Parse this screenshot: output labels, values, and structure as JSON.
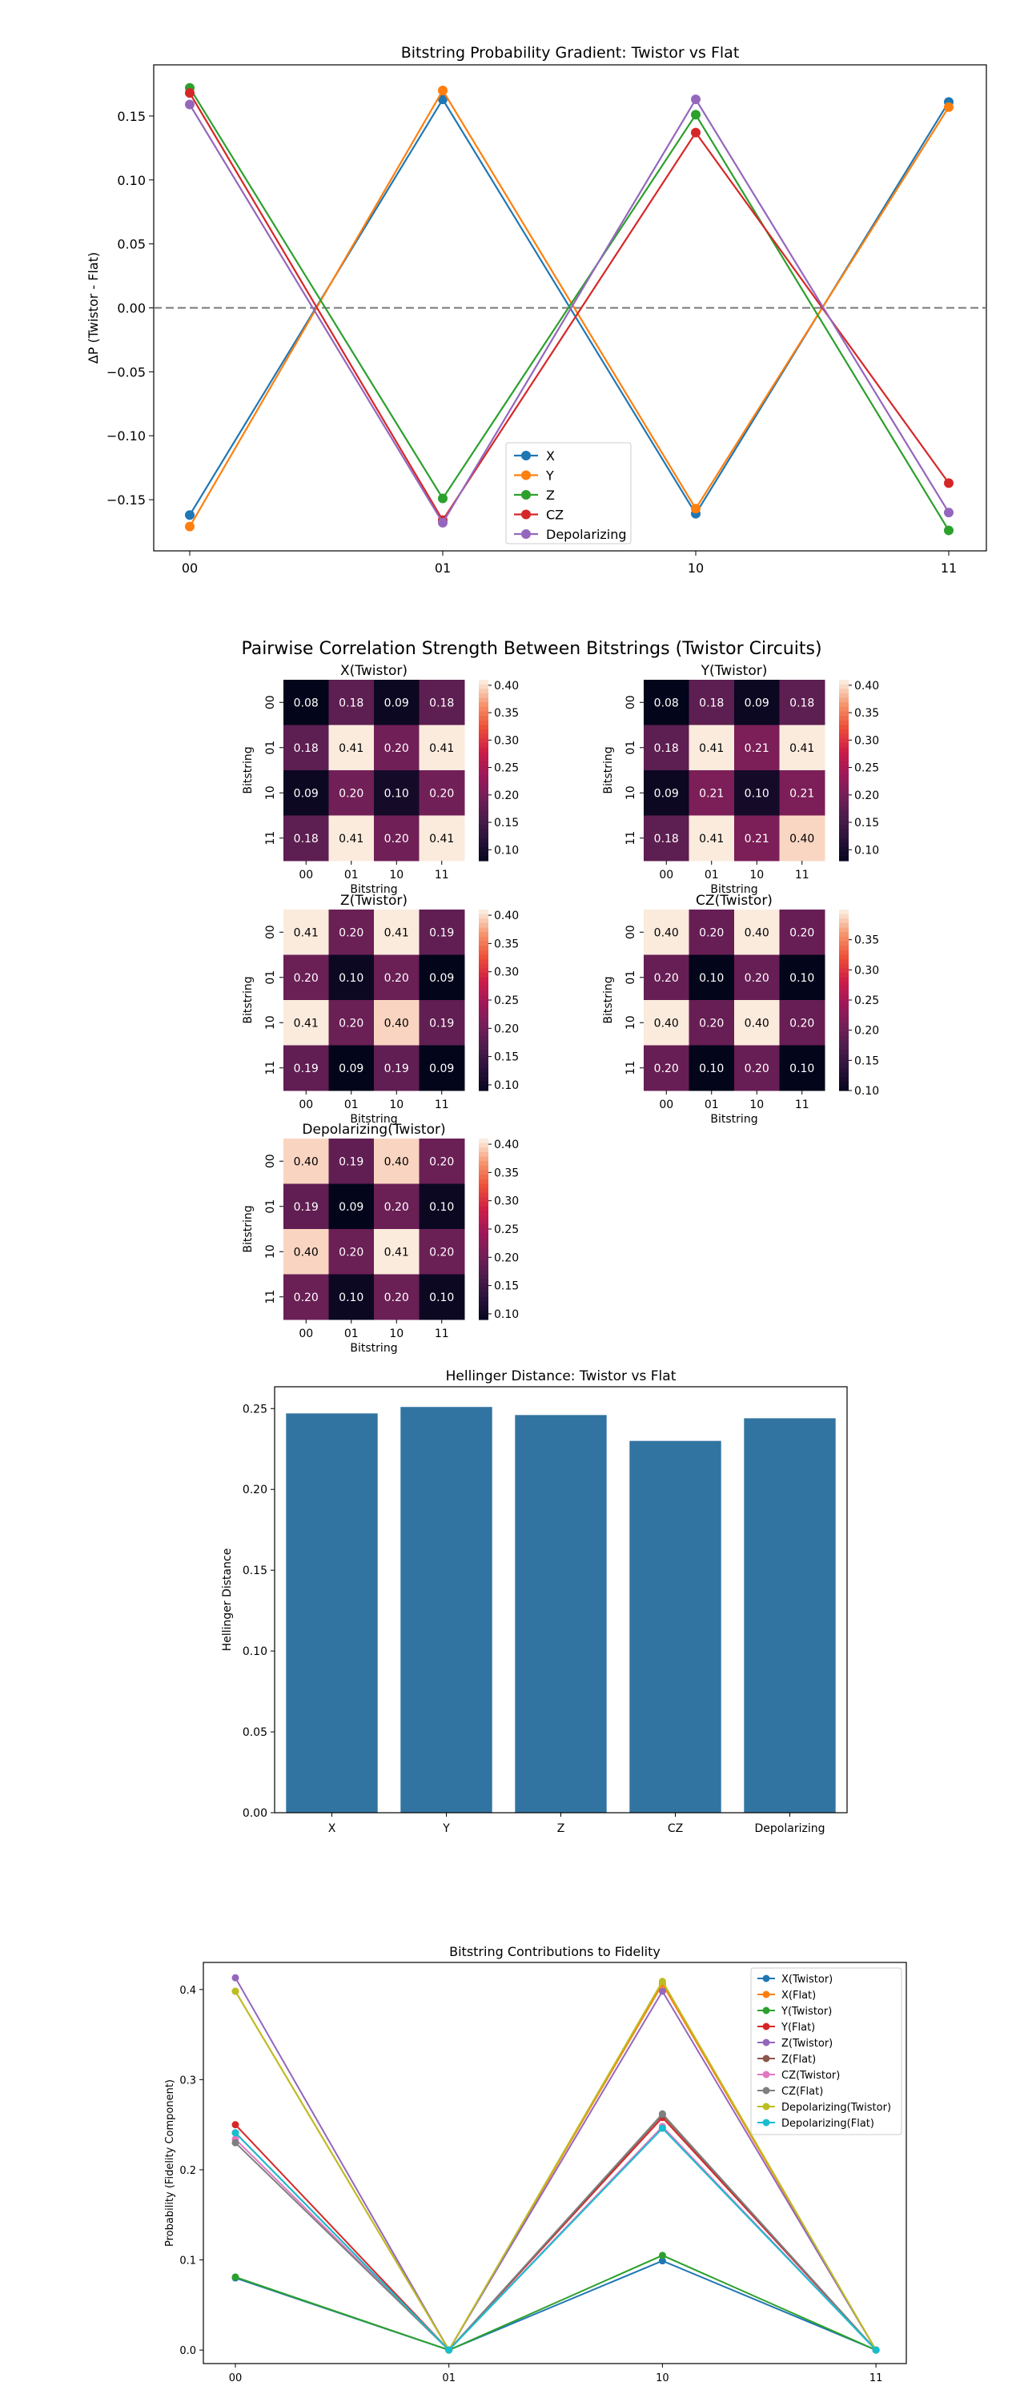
{
  "chart_data": [
    {
      "type": "line",
      "title": "Bitstring Probability Gradient: Twistor vs Flat",
      "xlabel": "",
      "ylabel": "ΔP (Twistor - Flat)",
      "categories": [
        "00",
        "01",
        "10",
        "11"
      ],
      "ylim": [
        -0.19,
        0.19
      ],
      "yticks": [
        -0.15,
        -0.1,
        -0.05,
        0.0,
        0.05,
        0.1,
        0.15
      ],
      "ytick_labels": [
        "−0.15",
        "−0.10",
        "−0.05",
        "0.00",
        "0.05",
        "0.10",
        "0.15"
      ],
      "zero_line": true,
      "legend_position": "lower-center",
      "series": [
        {
          "name": "X",
          "color": "#1f77b4",
          "values": [
            -0.162,
            0.163,
            -0.161,
            0.161
          ]
        },
        {
          "name": "Y",
          "color": "#ff7f0e",
          "values": [
            -0.171,
            0.17,
            -0.157,
            0.157
          ]
        },
        {
          "name": "Z",
          "color": "#2ca02c",
          "values": [
            0.172,
            -0.149,
            0.151,
            -0.174
          ]
        },
        {
          "name": "CZ",
          "color": "#d62728",
          "values": [
            0.168,
            -0.166,
            0.137,
            -0.137
          ]
        },
        {
          "name": "Depolarizing",
          "color": "#9467bd",
          "values": [
            0.159,
            -0.168,
            0.163,
            -0.16
          ]
        }
      ]
    },
    {
      "type": "heatmap",
      "suptitle": "Pairwise Correlation Strength Between Bitstrings (Twistor Circuits)",
      "xlabel": "Bitstring",
      "ylabel": "Bitstring",
      "labels": [
        "00",
        "01",
        "10",
        "11"
      ],
      "colormap": "rocket",
      "panels": [
        {
          "title": "X(Twistor)",
          "vmin": 0.08,
          "vmax": 0.41,
          "cbar_ticks": [
            "0.10",
            "0.15",
            "0.20",
            "0.25",
            "0.30",
            "0.35",
            "0.40"
          ],
          "values": [
            [
              0.08,
              0.18,
              0.09,
              0.18
            ],
            [
              0.18,
              0.41,
              0.2,
              0.41
            ],
            [
              0.09,
              0.2,
              0.1,
              0.2
            ],
            [
              0.18,
              0.41,
              0.2,
              0.41
            ]
          ],
          "labels_text": [
            [
              "0.08",
              "0.18",
              "0.09",
              "0.18"
            ],
            [
              "0.18",
              "0.41",
              "0.20",
              "0.41"
            ],
            [
              "0.09",
              "0.20",
              "0.10",
              "0.20"
            ],
            [
              "0.18",
              "0.41",
              "0.20",
              "0.41"
            ]
          ]
        },
        {
          "title": "Y(Twistor)",
          "vmin": 0.08,
          "vmax": 0.41,
          "cbar_ticks": [
            "0.10",
            "0.15",
            "0.20",
            "0.25",
            "0.30",
            "0.35",
            "0.40"
          ],
          "values": [
            [
              0.08,
              0.18,
              0.09,
              0.18
            ],
            [
              0.18,
              0.41,
              0.21,
              0.41
            ],
            [
              0.09,
              0.21,
              0.1,
              0.21
            ],
            [
              0.18,
              0.41,
              0.21,
              0.4
            ]
          ],
          "labels_text": [
            [
              "0.08",
              "0.18",
              "0.09",
              "0.18"
            ],
            [
              "0.18",
              "0.41",
              "0.21",
              "0.41"
            ],
            [
              "0.09",
              "0.21",
              "0.10",
              "0.21"
            ],
            [
              "0.18",
              "0.41",
              "0.21",
              "0.40"
            ]
          ]
        },
        {
          "title": "Z(Twistor)",
          "vmin": 0.09,
          "vmax": 0.41,
          "cbar_ticks": [
            "0.10",
            "0.15",
            "0.20",
            "0.25",
            "0.30",
            "0.35",
            "0.40"
          ],
          "values": [
            [
              0.41,
              0.2,
              0.41,
              0.19
            ],
            [
              0.2,
              0.1,
              0.2,
              0.09
            ],
            [
              0.41,
              0.2,
              0.4,
              0.19
            ],
            [
              0.19,
              0.09,
              0.19,
              0.09
            ]
          ],
          "labels_text": [
            [
              "0.41",
              "0.20",
              "0.41",
              "0.19"
            ],
            [
              "0.20",
              "0.10",
              "0.20",
              "0.09"
            ],
            [
              "0.41",
              "0.20",
              "0.40",
              "0.19"
            ],
            [
              "0.19",
              "0.09",
              "0.19",
              "0.09"
            ]
          ]
        },
        {
          "title": "CZ(Twistor)",
          "vmin": 0.1,
          "vmax": 0.4,
          "cbar_ticks": [
            "0.10",
            "0.15",
            "0.20",
            "0.25",
            "0.30",
            "0.35"
          ],
          "values": [
            [
              0.4,
              0.2,
              0.4,
              0.2
            ],
            [
              0.2,
              0.1,
              0.2,
              0.1
            ],
            [
              0.4,
              0.2,
              0.4,
              0.2
            ],
            [
              0.2,
              0.1,
              0.2,
              0.1
            ]
          ],
          "labels_text": [
            [
              "0.40",
              "0.20",
              "0.40",
              "0.20"
            ],
            [
              "0.20",
              "0.10",
              "0.20",
              "0.10"
            ],
            [
              "0.40",
              "0.20",
              "0.40",
              "0.20"
            ],
            [
              "0.20",
              "0.10",
              "0.20",
              "0.10"
            ]
          ]
        },
        {
          "title": "Depolarizing(Twistor)",
          "vmin": 0.09,
          "vmax": 0.41,
          "cbar_ticks": [
            "0.10",
            "0.15",
            "0.20",
            "0.25",
            "0.30",
            "0.35",
            "0.40"
          ],
          "values": [
            [
              0.4,
              0.19,
              0.4,
              0.2
            ],
            [
              0.19,
              0.09,
              0.2,
              0.1
            ],
            [
              0.4,
              0.2,
              0.41,
              0.2
            ],
            [
              0.2,
              0.1,
              0.2,
              0.1
            ]
          ],
          "labels_text": [
            [
              "0.40",
              "0.19",
              "0.40",
              "0.20"
            ],
            [
              "0.19",
              "0.09",
              "0.20",
              "0.10"
            ],
            [
              "0.40",
              "0.20",
              "0.41",
              "0.20"
            ],
            [
              "0.20",
              "0.10",
              "0.20",
              "0.10"
            ]
          ]
        }
      ]
    },
    {
      "type": "bar",
      "title": "Hellinger Distance: Twistor vs Flat",
      "xlabel": "",
      "ylabel": "Hellinger Distance",
      "categories": [
        "X",
        "Y",
        "Z",
        "CZ",
        "Depolarizing"
      ],
      "values": [
        0.247,
        0.251,
        0.246,
        0.23,
        0.244
      ],
      "ylim": [
        0,
        0.2635
      ],
      "yticks": [
        "0.00",
        "0.05",
        "0.10",
        "0.15",
        "0.20",
        "0.25"
      ],
      "color": "#3274a1"
    },
    {
      "type": "line",
      "title": "Bitstring Contributions to Fidelity",
      "xlabel": "",
      "ylabel": "Probability (Fidelity Component)",
      "categories": [
        "00",
        "01",
        "10",
        "11"
      ],
      "ylim": [
        -0.015,
        0.43
      ],
      "yticks": [
        "0.0",
        "0.1",
        "0.2",
        "0.3",
        "0.4"
      ],
      "legend_position": "upper-right",
      "series": [
        {
          "name": "X(Twistor)",
          "color": "#1f77b4",
          "values": [
            0.08,
            0.0,
            0.099,
            0.0
          ]
        },
        {
          "name": "X(Flat)",
          "color": "#ff7f0e",
          "values": [
            0.398,
            0.0,
            0.406,
            0.0
          ]
        },
        {
          "name": "Y(Twistor)",
          "color": "#2ca02c",
          "values": [
            0.081,
            0.0,
            0.105,
            0.0
          ]
        },
        {
          "name": "Y(Flat)",
          "color": "#d62728",
          "values": [
            0.25,
            0.0,
            0.258,
            0.0
          ]
        },
        {
          "name": "Z(Twistor)",
          "color": "#9467bd",
          "values": [
            0.413,
            0.0,
            0.398,
            0.0
          ]
        },
        {
          "name": "Z(Flat)",
          "color": "#8c564b",
          "values": [
            0.241,
            0.0,
            0.261,
            0.0
          ]
        },
        {
          "name": "CZ(Twistor)",
          "color": "#e377c2",
          "values": [
            0.234,
            0.0,
            0.248,
            0.0
          ]
        },
        {
          "name": "CZ(Flat)",
          "color": "#7f7f7f",
          "values": [
            0.23,
            0.0,
            0.262,
            0.0
          ]
        },
        {
          "name": "Depolarizing(Twistor)",
          "color": "#bcbd22",
          "values": [
            0.398,
            0.0,
            0.409,
            0.0
          ]
        },
        {
          "name": "Depolarizing(Flat)",
          "color": "#17becf",
          "values": [
            0.241,
            0.0,
            0.246,
            0.0
          ]
        }
      ]
    }
  ]
}
